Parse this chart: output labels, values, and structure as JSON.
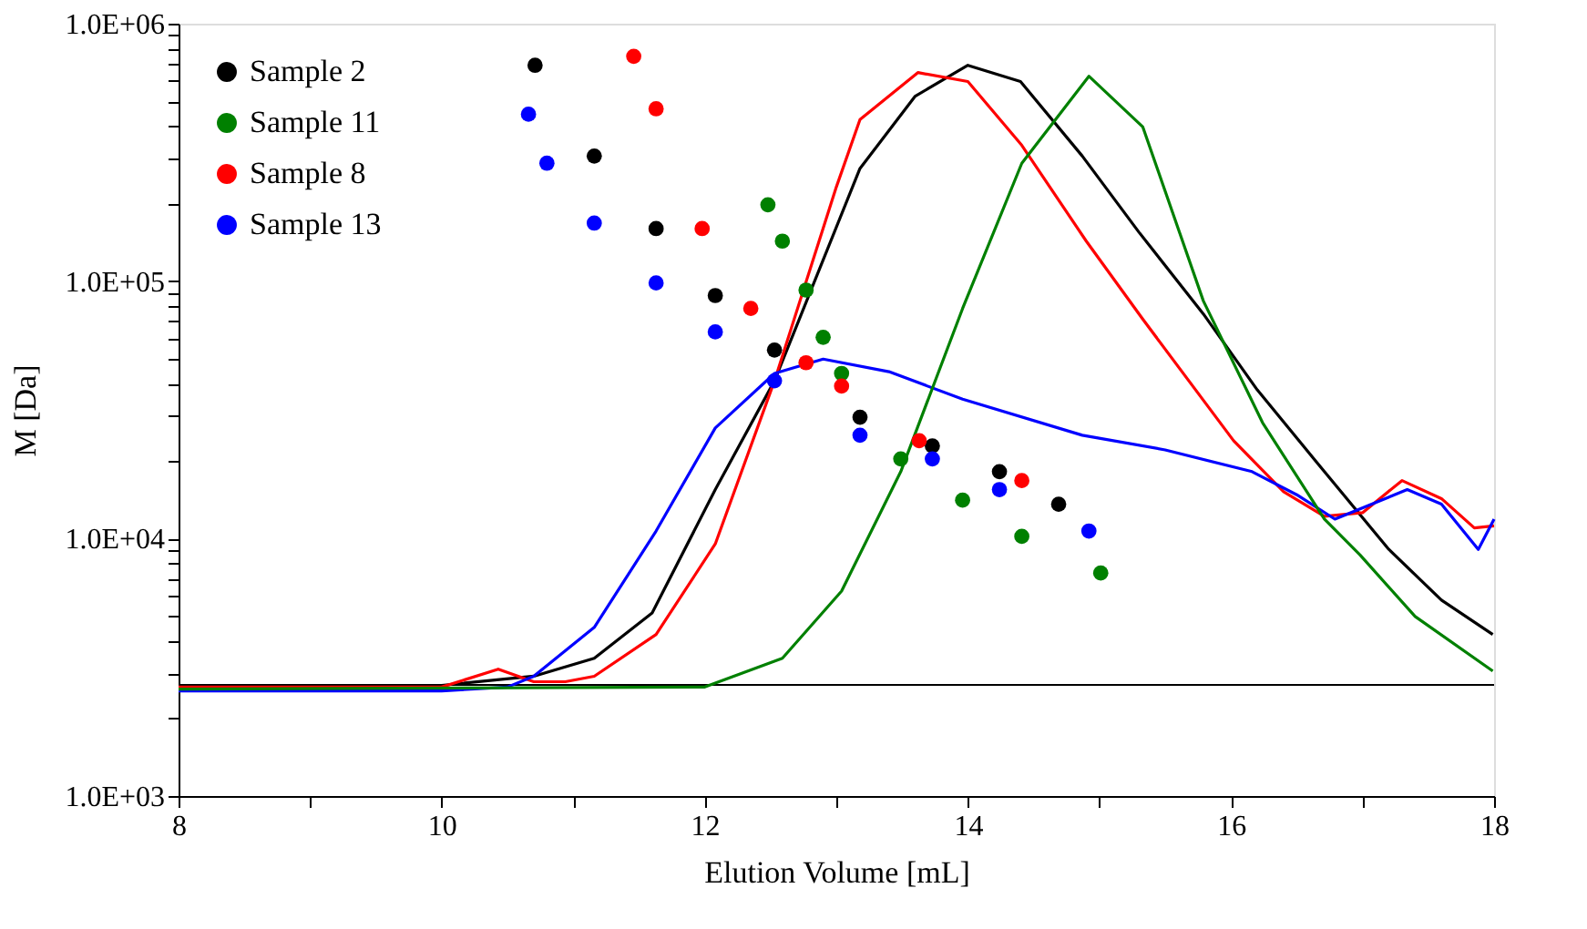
{
  "chart_data": {
    "type": "scatter",
    "xlabel": "Elution Volume [mL]",
    "ylabel": "M [Da]",
    "log": "y",
    "grid": false,
    "legend": "top left",
    "marker": "circle",
    "xlim": [
      8,
      18
    ],
    "xticks": [
      8,
      {
        "value": 9,
        "label": null
      },
      10,
      {
        "value": 11,
        "label": null
      },
      12,
      {
        "value": 13,
        "label": null
      },
      14,
      {
        "value": 15,
        "label": null
      },
      16,
      {
        "value": 17,
        "label": null
      },
      18
    ],
    "ylim": [
      1000,
      1000000
    ],
    "yticks": [
      {
        "value": 1000,
        "label": "1.0E+03"
      },
      {
        "value": 2000,
        "label": null
      },
      {
        "value": 3000,
        "label": null
      },
      {
        "value": 4000,
        "label": null
      },
      {
        "value": 5000,
        "label": null
      },
      {
        "value": 6000,
        "label": null
      },
      {
        "value": 7000,
        "label": null
      },
      {
        "value": 8000,
        "label": null
      },
      {
        "value": 9000,
        "label": null
      },
      {
        "value": 10000,
        "label": "1.0E+04"
      },
      {
        "value": 20000,
        "label": null
      },
      {
        "value": 30000,
        "label": null
      },
      {
        "value": 40000,
        "label": null
      },
      {
        "value": 50000,
        "label": null
      },
      {
        "value": 60000,
        "label": null
      },
      {
        "value": 70000,
        "label": null
      },
      {
        "value": 80000,
        "label": null
      },
      {
        "value": 90000,
        "label": null
      },
      {
        "value": 100000,
        "label": "1.0E+05"
      },
      {
        "value": 200000,
        "label": null
      },
      {
        "value": 300000,
        "label": null
      },
      {
        "value": 400000,
        "label": null
      },
      {
        "value": 500000,
        "label": null
      },
      {
        "value": 600000,
        "label": null
      },
      {
        "value": 700000,
        "label": null
      },
      {
        "value": 800000,
        "label": null
      },
      {
        "value": 900000,
        "label": null
      },
      {
        "value": 1000000,
        "label": "1.0E+06"
      }
    ],
    "ref_lines": [
      {
        "axis": "y",
        "value": 2700,
        "color": "#000000",
        "line_style": "solid"
      }
    ],
    "series": [
      {
        "name": "Sample 2",
        "color": "#000000",
        "x": [
          10.71,
          11.16,
          11.63,
          12.08,
          12.53,
          13.18,
          13.73,
          14.24,
          14.69
        ],
        "values": [
          689000,
          306000,
          160000,
          87900,
          54000,
          29600,
          22900,
          18200,
          13600
        ]
      },
      {
        "name": "Sample 11",
        "color": "#008000",
        "x": [
          12.48,
          12.59,
          12.77,
          12.9,
          13.04,
          13.49,
          13.96,
          14.41,
          15.01
        ],
        "values": [
          198000,
          143000,
          92300,
          60500,
          43800,
          20400,
          14100,
          10200,
          7350
        ]
      },
      {
        "name": "Sample 8",
        "color": "#ff0000",
        "x": [
          11.46,
          11.63,
          11.98,
          12.35,
          12.77,
          13.04,
          13.63,
          14.41
        ],
        "values": [
          747000,
          467000,
          160000,
          78300,
          48200,
          39100,
          24000,
          16800
        ]
      },
      {
        "name": "Sample 13",
        "color": "#0000ff",
        "x": [
          10.66,
          10.8,
          11.16,
          11.63,
          12.08,
          12.53,
          13.18,
          13.73,
          14.24,
          14.92
        ],
        "values": [
          445000,
          287000,
          168000,
          98400,
          63500,
          41000,
          25200,
          20400,
          15500,
          10700
        ]
      },
      {
        "type": "line",
        "marker": "none",
        "color": "#000000",
        "x": [
          8,
          10,
          10.7,
          11.16,
          11.6,
          12.08,
          12.53,
          13.18,
          13.6,
          14.0,
          14.4,
          14.87,
          15.3,
          15.79,
          16.2,
          16.71,
          17.2,
          17.6,
          17.99
        ],
        "values": [
          2650,
          2690,
          2920,
          3430,
          5140,
          15500,
          41000,
          274000,
          523000,
          689000,
          596000,
          306000,
          155000,
          74600,
          37800,
          18200,
          9080,
          5770,
          4240
        ]
      },
      {
        "type": "line",
        "marker": "none",
        "color": "#ff0000",
        "x": [
          8,
          10.0,
          10.43,
          10.7,
          10.94,
          11.16,
          11.63,
          12.08,
          12.53,
          13.0,
          13.18,
          13.62,
          14.0,
          14.41,
          14.9,
          15.33,
          16.02,
          16.4,
          16.71,
          17.0,
          17.3,
          17.6,
          17.85,
          18
        ],
        "values": [
          2650,
          2650,
          3110,
          2780,
          2780,
          2920,
          4240,
          9530,
          41000,
          232000,
          424000,
          646000,
          596000,
          337000,
          143000,
          71100,
          24000,
          15200,
          12200,
          12600,
          16800,
          14300,
          11000,
          11200
        ]
      },
      {
        "type": "line",
        "marker": "none",
        "color": "#0000ff",
        "x": [
          8,
          10.0,
          10.5,
          10.7,
          11.16,
          11.63,
          12.08,
          12.53,
          12.9,
          13.4,
          13.96,
          14.87,
          15.5,
          16.16,
          16.5,
          16.79,
          17.34,
          17.6,
          17.88,
          18
        ],
        "values": [
          2560,
          2560,
          2650,
          2920,
          4520,
          10700,
          26900,
          43800,
          49800,
          44500,
          34800,
          25200,
          22100,
          18200,
          14800,
          11900,
          15500,
          13600,
          9080,
          11900
        ]
      },
      {
        "type": "line",
        "marker": "none",
        "color": "#008000",
        "x": [
          8,
          12.0,
          12.59,
          13.04,
          13.49,
          13.96,
          14.41,
          14.92,
          15.33,
          15.79,
          16.24,
          16.71,
          16.98,
          17.4,
          17.99
        ],
        "values": [
          2600,
          2650,
          3430,
          6250,
          18200,
          78300,
          287000,
          625000,
          397000,
          83800,
          28200,
          11900,
          8650,
          4980,
          3060
        ]
      }
    ]
  }
}
